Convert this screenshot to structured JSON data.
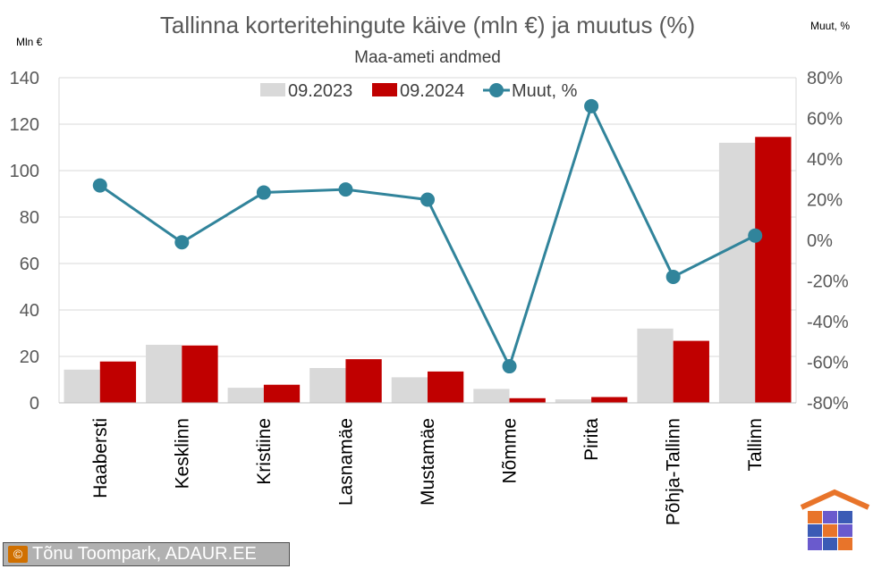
{
  "chart_data": {
    "type": "bar",
    "title": "Tallinna korteritehingute käive (mln €) ja muutus (%)",
    "subtitle": "Maa-ameti andmed",
    "ylabel": "Mln €",
    "y2label": "Muut, %",
    "ylim": [
      0,
      140
    ],
    "y2lim": [
      -80,
      80
    ],
    "yticks": [
      "0",
      "20",
      "40",
      "60",
      "80",
      "100",
      "120",
      "140"
    ],
    "y2ticks": [
      "-80%",
      "-60%",
      "-40%",
      "-20%",
      "0%",
      "20%",
      "40%",
      "60%",
      "80%"
    ],
    "categories": [
      "Haabersti",
      "Kesklinn",
      "Kristiine",
      "Lasnamäe",
      "Mustamäe",
      "Nõmme",
      "Pirita",
      "Põhja-Tallinn",
      "Tallinn"
    ],
    "series": [
      {
        "name": "09.2023",
        "kind": "bar",
        "color": "#d9d9d9",
        "values": [
          14.3,
          25.0,
          6.5,
          15.0,
          11.0,
          6.0,
          1.5,
          32.0,
          112.0
        ]
      },
      {
        "name": "09.2024",
        "kind": "bar",
        "color": "#c00000",
        "values": [
          17.8,
          24.7,
          7.8,
          18.8,
          13.5,
          2.0,
          2.5,
          26.7,
          114.5
        ]
      },
      {
        "name": "Muut, %",
        "kind": "line",
        "axis": "right",
        "color": "#31849b",
        "values": [
          27,
          -1,
          23.5,
          25,
          20,
          -62,
          66,
          -18,
          2.3
        ]
      }
    ],
    "legend": [
      "09.2023",
      "09.2024",
      "Muut, %"
    ],
    "grid": true
  },
  "credit": {
    "symbol": "©",
    "text": "Tõnu Toompark, ADAUR.EE"
  },
  "logo": {
    "name": "ADAUR puzzle-house logo"
  }
}
